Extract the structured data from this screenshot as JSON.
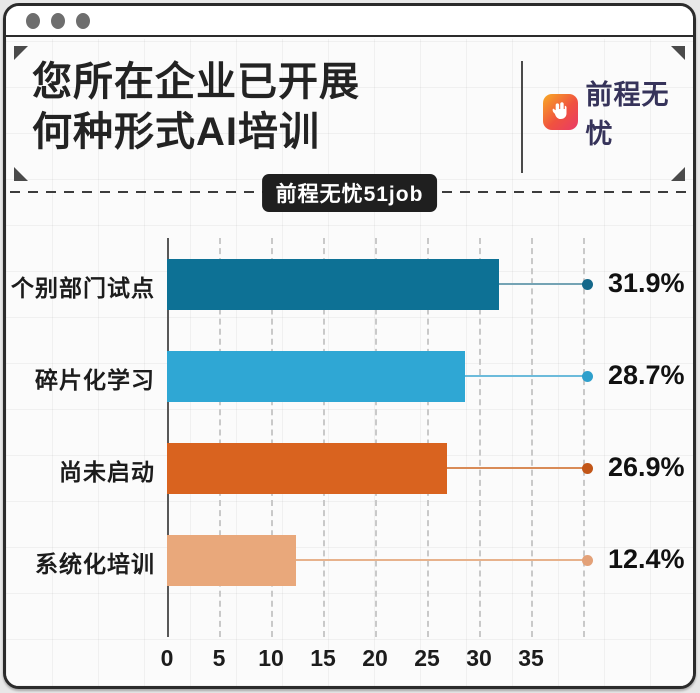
{
  "window": {
    "controls": [
      "window-dot",
      "window-dot",
      "window-dot"
    ]
  },
  "header": {
    "title_line1": "您所在企业已开展",
    "title_line2": "何种形式AI培训",
    "logo_text": "前程无忧",
    "logo_icon": "hand-51job-icon"
  },
  "badge": {
    "label": "前程无忧51job"
  },
  "chart_data": {
    "type": "bar",
    "orientation": "horizontal",
    "title": "您所在企业已开展何种形式AI培训",
    "source_badge": "前程无忧51job",
    "categories": [
      "个别部门试点",
      "碎片化学习",
      "尚未启动",
      "系统化培训"
    ],
    "values": [
      31.9,
      28.7,
      26.9,
      12.4
    ],
    "value_labels": [
      "31.9%",
      "28.7%",
      "26.9%",
      "12.4%"
    ],
    "bar_colors": [
      "#0d7195",
      "#2fa7d4",
      "#d9631f",
      "#e9a87b"
    ],
    "dot_colors": [
      "#15688a",
      "#2fa0cc",
      "#c25618",
      "#e3a178"
    ],
    "leader_line_colors": [
      "#74a3b4",
      "#6cbbdb",
      "#d98b57",
      "#e7b28c"
    ],
    "x_ticks": [
      0,
      5,
      10,
      15,
      20,
      25,
      30,
      35
    ],
    "xlim": [
      0,
      40
    ],
    "grid": "vertical-dashed-every-5",
    "legend": "none",
    "xlabel": "",
    "ylabel": ""
  },
  "colors": {
    "frame_border": "#2b2b2b",
    "badge_bg": "#1f1f1f",
    "logo_text": "#36335a",
    "logo_gradient": [
      "#f8ab25",
      "#f0523f",
      "#e93a68"
    ]
  }
}
